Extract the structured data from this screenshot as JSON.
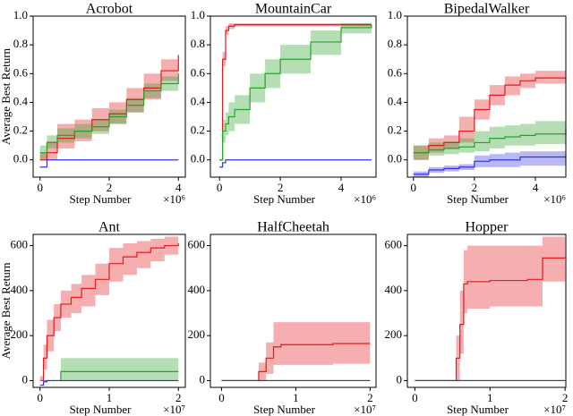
{
  "chart_data": [
    {
      "type": "line",
      "title": "Acrobot",
      "xlabel": "Step Number",
      "ylabel": "Average Best Return",
      "x_offset_label": "×10⁶",
      "x": [
        0,
        0.2,
        0.5,
        1,
        1.5,
        2,
        2.5,
        3,
        3.5,
        4
      ],
      "xlim": [
        -0.2,
        4.2
      ],
      "xticks": [
        0,
        2,
        4
      ],
      "ylim": [
        -0.12,
        1.0
      ],
      "yticks": [
        {
          "value": 0,
          "label": "0.0"
        },
        0.2,
        0.4,
        0.6,
        0.8,
        {
          "value": 1,
          "label": "1.0"
        }
      ],
      "step": true,
      "series": [
        {
          "color": "#e41a1c",
          "values": [
            0,
            0.05,
            0.15,
            0.2,
            0.28,
            0.32,
            0.42,
            0.5,
            0.62,
            0.73
          ],
          "lower": [
            0,
            0,
            0.08,
            0.13,
            0.2,
            0.25,
            0.33,
            0.42,
            0.55,
            0.66
          ],
          "upper": [
            0.05,
            0.13,
            0.25,
            0.28,
            0.36,
            0.4,
            0.5,
            0.6,
            0.7,
            0.8
          ]
        },
        {
          "color": "#2ca02c",
          "values": [
            0.05,
            0.12,
            0.17,
            0.2,
            0.23,
            0.3,
            0.38,
            0.48,
            0.53,
            0.6
          ],
          "lower": [
            0,
            0.08,
            0.12,
            0.15,
            0.18,
            0.25,
            0.33,
            0.43,
            0.48,
            0.55
          ],
          "upper": [
            0.1,
            0.17,
            0.22,
            0.25,
            0.28,
            0.35,
            0.43,
            0.53,
            0.58,
            0.65
          ]
        },
        {
          "color": "#3333dd",
          "values": [
            -0.05,
            0,
            0,
            0,
            0,
            0,
            0,
            0,
            0,
            0
          ]
        }
      ]
    },
    {
      "type": "line",
      "title": "MountainCar",
      "xlabel": "Step Number",
      "x_offset_label": "×10⁶",
      "x": [
        0,
        0.1,
        0.2,
        0.3,
        0.5,
        1,
        1.5,
        2,
        3,
        4,
        5
      ],
      "xlim": [
        -0.3,
        5.15
      ],
      "xticks": [
        0,
        2,
        4
      ],
      "ylim": [
        -0.12,
        1.0
      ],
      "yticks": [
        {
          "value": 0,
          "label": "0.0"
        },
        0.2,
        0.4,
        0.6,
        0.8,
        {
          "value": 1,
          "label": "1.0"
        }
      ],
      "step": true,
      "series": [
        {
          "color": "#e41a1c",
          "values": [
            0,
            0.7,
            0.9,
            0.93,
            0.94,
            0.94,
            0.94,
            0.94,
            0.94,
            0.94,
            0.94
          ],
          "lower": [
            0,
            0.65,
            0.87,
            0.91,
            0.93,
            0.93,
            0.93,
            0.93,
            0.93,
            0.93,
            0.93
          ],
          "upper": [
            0,
            0.75,
            0.93,
            0.95,
            0.95,
            0.95,
            0.95,
            0.95,
            0.95,
            0.95,
            0.95
          ]
        },
        {
          "color": "#2ca02c",
          "values": [
            0,
            0.2,
            0.25,
            0.3,
            0.35,
            0.5,
            0.6,
            0.7,
            0.82,
            0.92,
            0.94
          ],
          "lower": [
            0,
            0.12,
            0.17,
            0.2,
            0.25,
            0.4,
            0.5,
            0.6,
            0.73,
            0.88,
            0.94
          ],
          "upper": [
            0,
            0.28,
            0.33,
            0.4,
            0.45,
            0.6,
            0.7,
            0.8,
            0.9,
            0.95,
            0.95
          ]
        },
        {
          "color": "#3333dd",
          "values": [
            -0.05,
            -0.02,
            0,
            0,
            0,
            0,
            0,
            0,
            0,
            0,
            0
          ]
        }
      ]
    },
    {
      "type": "line",
      "title": "BipedalWalker",
      "xlabel": "Step Number",
      "x_offset_label": "×10⁶",
      "x": [
        0,
        0.5,
        1,
        1.5,
        2,
        2.5,
        3,
        3.5,
        4,
        5
      ],
      "xlim": [
        -0.2,
        5.0
      ],
      "xticks": [
        0,
        2,
        4
      ],
      "ylim": [
        -0.12,
        1.0
      ],
      "yticks": [
        {
          "value": 0,
          "label": "0.0"
        },
        0.2,
        0.4,
        0.6,
        0.8,
        {
          "value": 1,
          "label": "1.0"
        }
      ],
      "step": true,
      "series": [
        {
          "color": "#e41a1c",
          "values": [
            0.05,
            0.1,
            0.12,
            0.2,
            0.35,
            0.45,
            0.52,
            0.55,
            0.57,
            0.57
          ],
          "lower": [
            0,
            0.05,
            0.08,
            0.12,
            0.28,
            0.38,
            0.45,
            0.5,
            0.53,
            0.53
          ],
          "upper": [
            0.1,
            0.15,
            0.17,
            0.3,
            0.42,
            0.52,
            0.58,
            0.6,
            0.62,
            0.62
          ]
        },
        {
          "color": "#2ca02c",
          "values": [
            0.05,
            0.07,
            0.08,
            0.09,
            0.12,
            0.15,
            0.16,
            0.17,
            0.18,
            0.22
          ],
          "lower": [
            0,
            0.03,
            0.04,
            0.05,
            0.06,
            0.08,
            0.1,
            0.1,
            0.11,
            0.12
          ],
          "upper": [
            0.1,
            0.12,
            0.13,
            0.15,
            0.2,
            0.23,
            0.24,
            0.25,
            0.27,
            0.32
          ]
        },
        {
          "color": "#3333dd",
          "values": [
            -0.1,
            -0.07,
            -0.06,
            -0.05,
            -0.01,
            0,
            0,
            0.02,
            0.02,
            0.03
          ],
          "lower": [
            -0.12,
            -0.09,
            -0.08,
            -0.07,
            -0.05,
            -0.05,
            -0.05,
            -0.04,
            -0.04,
            -0.04
          ],
          "upper": [
            -0.08,
            -0.05,
            -0.04,
            -0.03,
            0.03,
            0.04,
            0.05,
            0.06,
            0.06,
            0.07
          ]
        }
      ]
    },
    {
      "type": "line",
      "title": "Ant",
      "xlabel": "Step Number",
      "ylabel": "Average Best Return",
      "x_offset_label": "×10⁷",
      "x": [
        0,
        0.05,
        0.1,
        0.2,
        0.3,
        0.45,
        0.6,
        0.8,
        1.0,
        1.2,
        1.4,
        1.6,
        1.8,
        2.0
      ],
      "xlim": [
        -0.1,
        2.1
      ],
      "xticks": [
        0,
        1,
        2
      ],
      "ylim": [
        -30,
        650
      ],
      "yticks": [
        0,
        200,
        400,
        600
      ],
      "step": true,
      "series": [
        {
          "color": "#e41a1c",
          "values": [
            0,
            100,
            200,
            280,
            340,
            370,
            410,
            450,
            520,
            550,
            570,
            590,
            600,
            610
          ],
          "lower": [
            0,
            50,
            130,
            220,
            280,
            300,
            330,
            380,
            440,
            470,
            500,
            530,
            560,
            580
          ],
          "upper": [
            20,
            160,
            270,
            340,
            400,
            430,
            470,
            520,
            590,
            610,
            620,
            630,
            640,
            640
          ]
        },
        {
          "color": "#2ca02c",
          "values": [
            0,
            0,
            0,
            0,
            40,
            40,
            40,
            40,
            40,
            40,
            40,
            40,
            40,
            40
          ],
          "lower": [
            0,
            0,
            0,
            0,
            0,
            0,
            0,
            0,
            0,
            0,
            0,
            0,
            0,
            0
          ],
          "upper": [
            0,
            0,
            0,
            0,
            100,
            100,
            100,
            100,
            100,
            100,
            100,
            100,
            100,
            100
          ]
        },
        {
          "color": "#3333dd",
          "values": [
            -20,
            -5,
            0,
            0,
            0,
            0,
            0,
            0,
            0,
            0,
            0,
            0,
            0,
            0
          ]
        }
      ]
    },
    {
      "type": "line",
      "title": "HalfCheetah",
      "xlabel": "Step Number",
      "x_offset_label": "×10⁷",
      "x": [
        0,
        0.3,
        0.5,
        0.6,
        0.7,
        0.8,
        1.0,
        1.5,
        2.0
      ],
      "xlim": [
        -0.15,
        2.08
      ],
      "xticks": [
        0,
        1,
        2
      ],
      "ylim": [
        -30,
        650
      ],
      "yticks": [
        0,
        200,
        400,
        600
      ],
      "step": true,
      "series": [
        {
          "color": "#e41a1c",
          "values": [
            0,
            0,
            40,
            100,
            150,
            160,
            160,
            165,
            165
          ],
          "lower": [
            0,
            0,
            0,
            30,
            70,
            70,
            70,
            75,
            75
          ],
          "upper": [
            0,
            0,
            80,
            170,
            260,
            260,
            260,
            260,
            260
          ]
        },
        {
          "color": "#2ca02c",
          "values": [
            0,
            0,
            0,
            0,
            0,
            0,
            0,
            0,
            0
          ]
        },
        {
          "color": "#3333dd",
          "values": [
            0,
            0,
            0,
            0,
            0,
            0,
            0,
            0,
            0
          ]
        }
      ]
    },
    {
      "type": "line",
      "title": "Hopper",
      "xlabel": "Step Number",
      "x_offset_label": "×10⁷",
      "x": [
        0,
        0.5,
        0.55,
        0.6,
        0.65,
        0.7,
        1.0,
        1.5,
        1.7,
        2.0
      ],
      "xlim": [
        -0.1,
        2.01
      ],
      "xticks": [
        0,
        1,
        2
      ],
      "ylim": [
        -30,
        650
      ],
      "yticks": [
        0,
        200,
        400,
        600
      ],
      "step": true,
      "series": [
        {
          "color": "#e41a1c",
          "values": [
            0,
            0,
            100,
            250,
            430,
            440,
            445,
            450,
            545,
            545
          ],
          "lower": [
            0,
            0,
            0,
            120,
            300,
            320,
            330,
            330,
            440,
            440
          ],
          "upper": [
            0,
            0,
            200,
            400,
            580,
            600,
            600,
            600,
            640,
            640
          ]
        },
        {
          "color": "#2ca02c",
          "values": [
            0,
            0,
            0,
            0,
            0,
            0,
            0,
            0,
            0,
            0
          ]
        },
        {
          "color": "#3333dd",
          "values": [
            0,
            0,
            0,
            0,
            0,
            0,
            0,
            0,
            0,
            0
          ]
        }
      ]
    }
  ]
}
